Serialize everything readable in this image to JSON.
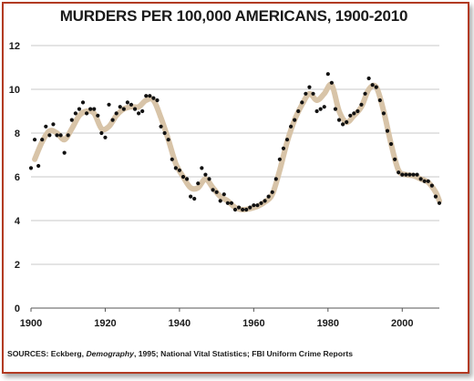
{
  "chart_data": {
    "type": "scatter",
    "title": "MURDERS PER 100,000 AMERICANS, 1900-2010",
    "xlabel": "",
    "ylabel": "",
    "xlim": [
      1900,
      2010
    ],
    "ylim": [
      0,
      12
    ],
    "x_ticks": [
      1900,
      1920,
      1940,
      1960,
      1980,
      2000
    ],
    "y_ticks": [
      0,
      2,
      4,
      6,
      8,
      10,
      12
    ],
    "grid": "horizontal",
    "legend": "none",
    "colors": {
      "points": "#111111",
      "trend": "#d8c4a8",
      "grid": "#c8c8c8",
      "frame": "#b23a22"
    },
    "series": [
      {
        "values": [
          [
            1900,
            6.4
          ],
          [
            1901,
            7.7
          ],
          [
            1902,
            6.5
          ],
          [
            1903,
            7.7
          ],
          [
            1904,
            8.3
          ],
          [
            1905,
            7.9
          ],
          [
            1906,
            8.4
          ],
          [
            1907,
            7.9
          ],
          [
            1908,
            7.9
          ],
          [
            1909,
            7.1
          ],
          [
            1910,
            7.9
          ],
          [
            1911,
            8.6
          ],
          [
            1912,
            8.9
          ],
          [
            1913,
            9.1
          ],
          [
            1914,
            9.4
          ],
          [
            1915,
            8.9
          ],
          [
            1916,
            9.1
          ],
          [
            1917,
            9.1
          ],
          [
            1918,
            8.8
          ],
          [
            1919,
            8.0
          ],
          [
            1920,
            7.8
          ],
          [
            1921,
            9.3
          ],
          [
            1922,
            8.6
          ],
          [
            1923,
            8.9
          ],
          [
            1924,
            9.2
          ],
          [
            1925,
            9.1
          ],
          [
            1926,
            9.4
          ],
          [
            1927,
            9.3
          ],
          [
            1928,
            9.1
          ],
          [
            1929,
            8.9
          ],
          [
            1930,
            9.0
          ],
          [
            1931,
            9.7
          ],
          [
            1932,
            9.7
          ],
          [
            1933,
            9.6
          ],
          [
            1934,
            9.5
          ],
          [
            1935,
            8.3
          ],
          [
            1936,
            8.0
          ],
          [
            1937,
            7.7
          ],
          [
            1938,
            6.8
          ],
          [
            1939,
            6.4
          ],
          [
            1940,
            6.3
          ],
          [
            1941,
            6.0
          ],
          [
            1942,
            5.9
          ],
          [
            1943,
            5.1
          ],
          [
            1944,
            5.0
          ],
          [
            1945,
            5.7
          ],
          [
            1946,
            6.4
          ],
          [
            1947,
            6.1
          ],
          [
            1948,
            5.9
          ],
          [
            1949,
            5.4
          ],
          [
            1950,
            5.3
          ],
          [
            1951,
            4.9
          ],
          [
            1952,
            5.2
          ],
          [
            1953,
            4.8
          ],
          [
            1954,
            4.8
          ],
          [
            1955,
            4.5
          ],
          [
            1956,
            4.6
          ],
          [
            1957,
            4.5
          ],
          [
            1958,
            4.5
          ],
          [
            1959,
            4.6
          ],
          [
            1960,
            4.7
          ],
          [
            1961,
            4.7
          ],
          [
            1962,
            4.8
          ],
          [
            1963,
            4.9
          ],
          [
            1964,
            5.1
          ],
          [
            1965,
            5.3
          ],
          [
            1966,
            5.9
          ],
          [
            1967,
            6.8
          ],
          [
            1968,
            7.3
          ],
          [
            1969,
            7.7
          ],
          [
            1970,
            8.3
          ],
          [
            1971,
            8.6
          ],
          [
            1972,
            9.0
          ],
          [
            1973,
            9.4
          ],
          [
            1974,
            9.8
          ],
          [
            1975,
            10.1
          ],
          [
            1976,
            9.8
          ],
          [
            1977,
            9.0
          ],
          [
            1978,
            9.1
          ],
          [
            1979,
            9.2
          ],
          [
            1980,
            10.7
          ],
          [
            1981,
            10.3
          ],
          [
            1982,
            9.1
          ],
          [
            1983,
            8.6
          ],
          [
            1984,
            8.4
          ],
          [
            1985,
            8.5
          ],
          [
            1986,
            8.8
          ],
          [
            1987,
            8.9
          ],
          [
            1988,
            9.0
          ],
          [
            1989,
            9.3
          ],
          [
            1990,
            9.8
          ],
          [
            1991,
            10.5
          ],
          [
            1992,
            10.2
          ],
          [
            1993,
            10.1
          ],
          [
            1994,
            9.5
          ],
          [
            1995,
            8.9
          ],
          [
            1996,
            8.1
          ],
          [
            1997,
            7.5
          ],
          [
            1998,
            6.8
          ],
          [
            1999,
            6.2
          ],
          [
            2000,
            6.1
          ],
          [
            2001,
            6.1
          ],
          [
            2002,
            6.1
          ],
          [
            2003,
            6.1
          ],
          [
            2004,
            6.1
          ],
          [
            2005,
            5.9
          ],
          [
            2006,
            5.8
          ],
          [
            2007,
            5.8
          ],
          [
            2008,
            5.6
          ],
          [
            2009,
            5.1
          ],
          [
            2010,
            4.8
          ]
        ]
      }
    ],
    "trend": [
      [
        1901,
        6.8
      ],
      [
        1903,
        7.6
      ],
      [
        1905,
        8.1
      ],
      [
        1907,
        8.0
      ],
      [
        1909,
        7.7
      ],
      [
        1911,
        8.2
      ],
      [
        1913,
        8.8
      ],
      [
        1915,
        9.0
      ],
      [
        1917,
        8.9
      ],
      [
        1919,
        8.2
      ],
      [
        1921,
        8.3
      ],
      [
        1923,
        8.8
      ],
      [
        1925,
        9.1
      ],
      [
        1927,
        9.2
      ],
      [
        1929,
        9.2
      ],
      [
        1931,
        9.5
      ],
      [
        1933,
        9.5
      ],
      [
        1935,
        8.7
      ],
      [
        1937,
        7.7
      ],
      [
        1939,
        6.6
      ],
      [
        1941,
        6.0
      ],
      [
        1943,
        5.5
      ],
      [
        1945,
        5.5
      ],
      [
        1947,
        5.9
      ],
      [
        1949,
        5.5
      ],
      [
        1951,
        5.1
      ],
      [
        1953,
        4.9
      ],
      [
        1955,
        4.6
      ],
      [
        1957,
        4.5
      ],
      [
        1959,
        4.55
      ],
      [
        1961,
        4.65
      ],
      [
        1963,
        4.85
      ],
      [
        1965,
        5.2
      ],
      [
        1967,
        6.3
      ],
      [
        1969,
        7.6
      ],
      [
        1971,
        8.6
      ],
      [
        1973,
        9.3
      ],
      [
        1975,
        9.8
      ],
      [
        1977,
        9.5
      ],
      [
        1979,
        9.8
      ],
      [
        1981,
        10.2
      ],
      [
        1983,
        9.0
      ],
      [
        1985,
        8.5
      ],
      [
        1987,
        8.8
      ],
      [
        1989,
        9.2
      ],
      [
        1991,
        10.0
      ],
      [
        1993,
        10.1
      ],
      [
        1995,
        9.0
      ],
      [
        1997,
        7.5
      ],
      [
        1999,
        6.3
      ],
      [
        2001,
        6.1
      ],
      [
        2003,
        6.05
      ],
      [
        2005,
        5.9
      ],
      [
        2007,
        5.75
      ],
      [
        2009,
        5.3
      ],
      [
        2010,
        4.9
      ]
    ]
  },
  "source": {
    "prefix": "SOURCES: Eckberg, ",
    "italic": "Demography",
    "suffix": ", 1995; National Vital Statistics; FBI Uniform Crime Reports"
  }
}
